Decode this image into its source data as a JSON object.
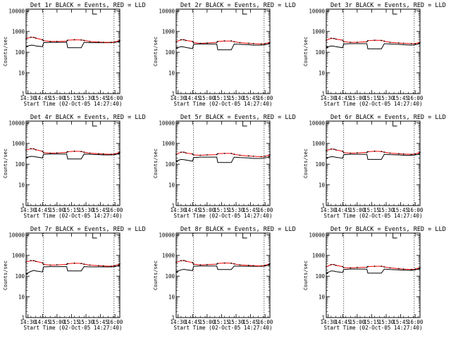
{
  "figure": {
    "xlabel": "Start Time (02-Oct-05 14:27:40)",
    "ylabel": "Counts/sec"
  },
  "axes": {
    "x_tick_labels": [
      "14:30",
      "14:45",
      "15:00",
      "15:15",
      "15:30",
      "15:45",
      "16:00"
    ],
    "y_tick_labels": [
      "1",
      "10",
      "100",
      "1000",
      "10000"
    ],
    "y_scale": "log",
    "ylim": [
      1,
      12000
    ],
    "xlim_minutes": [
      0,
      97
    ]
  },
  "colors": {
    "events": "#000000",
    "lld": "#ff0000",
    "frame": "#000000"
  },
  "chart_data": [
    {
      "type": "line",
      "title": "Det 1r BLACK = Events, RED = LLD",
      "x_minutes": [
        0,
        5,
        8,
        10,
        17,
        18,
        25,
        32,
        42,
        43,
        50,
        57,
        60,
        66,
        75,
        80,
        88,
        92,
        97
      ],
      "series": [
        {
          "name": "Events",
          "values": [
            190,
            220,
            215,
            200,
            185,
            290,
            300,
            300,
            300,
            165,
            165,
            165,
            300,
            290,
            290,
            290,
            290,
            300,
            330
          ]
        },
        {
          "name": "LLD",
          "values": [
            450,
            530,
            520,
            480,
            400,
            360,
            330,
            330,
            340,
            380,
            400,
            390,
            370,
            330,
            310,
            300,
            300,
            310,
            370
          ]
        }
      ],
      "vlines_minutes": [
        18,
        91
      ],
      "markers": [
        "dot-left",
        "dot-right",
        "top-tick"
      ]
    },
    {
      "type": "line",
      "title": "Det 2r BLACK = Events, RED = LLD",
      "x_minutes": [
        0,
        5,
        8,
        10,
        17,
        18,
        25,
        32,
        42,
        43,
        50,
        57,
        60,
        66,
        75,
        80,
        88,
        92,
        97
      ],
      "series": [
        {
          "name": "Events",
          "values": [
            160,
            185,
            180,
            170,
            150,
            240,
            250,
            250,
            250,
            130,
            130,
            130,
            250,
            240,
            230,
            220,
            220,
            230,
            260
          ]
        },
        {
          "name": "LLD",
          "values": [
            320,
            400,
            400,
            370,
            330,
            290,
            270,
            280,
            300,
            330,
            350,
            350,
            320,
            290,
            270,
            260,
            250,
            260,
            300
          ]
        }
      ],
      "vlines_minutes": [
        18,
        91
      ],
      "markers": [
        "dot-left",
        "dot-right",
        "top-tick"
      ]
    },
    {
      "type": "line",
      "title": "Det 3r BLACK = Events, RED = LLD",
      "x_minutes": [
        0,
        5,
        8,
        10,
        17,
        18,
        25,
        32,
        42,
        43,
        50,
        57,
        60,
        66,
        75,
        80,
        88,
        92,
        97
      ],
      "series": [
        {
          "name": "Events",
          "values": [
            170,
            200,
            195,
            185,
            165,
            250,
            260,
            260,
            260,
            145,
            145,
            145,
            260,
            250,
            240,
            230,
            220,
            230,
            260
          ]
        },
        {
          "name": "LLD",
          "values": [
            380,
            470,
            460,
            430,
            380,
            320,
            300,
            300,
            320,
            360,
            380,
            370,
            340,
            300,
            280,
            270,
            260,
            260,
            300
          ]
        }
      ],
      "vlines_minutes": [
        18,
        91
      ],
      "markers": [
        "dot-left",
        "dot-right",
        "top-tick"
      ]
    },
    {
      "type": "line",
      "title": "Det 4r BLACK = Events, RED = LLD",
      "x_minutes": [
        0,
        5,
        8,
        10,
        17,
        18,
        25,
        32,
        42,
        43,
        50,
        57,
        60,
        66,
        75,
        80,
        88,
        92,
        97
      ],
      "series": [
        {
          "name": "Events",
          "values": [
            210,
            240,
            235,
            225,
            200,
            300,
            310,
            310,
            310,
            180,
            180,
            180,
            310,
            300,
            290,
            280,
            280,
            290,
            330
          ]
        },
        {
          "name": "LLD",
          "values": [
            480,
            560,
            550,
            500,
            420,
            360,
            340,
            350,
            370,
            400,
            420,
            410,
            380,
            340,
            320,
            310,
            300,
            310,
            380
          ]
        }
      ],
      "vlines_minutes": [
        18,
        91
      ],
      "markers": [
        "dot-left",
        "dot-right",
        "top-tick"
      ]
    },
    {
      "type": "line",
      "title": "Det 5r BLACK = Events, RED = LLD",
      "x_minutes": [
        0,
        5,
        8,
        10,
        17,
        18,
        25,
        32,
        42,
        43,
        50,
        57,
        60,
        66,
        75,
        80,
        88,
        92,
        97
      ],
      "series": [
        {
          "name": "Events",
          "values": [
            140,
            170,
            165,
            160,
            140,
            210,
            220,
            220,
            220,
            120,
            120,
            120,
            220,
            210,
            200,
            190,
            190,
            200,
            230
          ]
        },
        {
          "name": "LLD",
          "values": [
            300,
            380,
            380,
            350,
            310,
            280,
            270,
            280,
            290,
            320,
            330,
            330,
            300,
            270,
            250,
            240,
            230,
            240,
            280
          ]
        }
      ],
      "vlines_minutes": [
        18,
        91
      ],
      "markers": [
        "dot-left",
        "dot-right",
        "top-tick"
      ]
    },
    {
      "type": "line",
      "title": "Det 6r BLACK = Events, RED = LLD",
      "x_minutes": [
        0,
        5,
        8,
        10,
        17,
        18,
        25,
        32,
        42,
        43,
        50,
        57,
        60,
        66,
        75,
        80,
        88,
        92,
        97
      ],
      "series": [
        {
          "name": "Events",
          "values": [
            200,
            230,
            225,
            215,
            195,
            290,
            300,
            300,
            300,
            170,
            170,
            170,
            300,
            290,
            280,
            270,
            270,
            280,
            310
          ]
        },
        {
          "name": "LLD",
          "values": [
            450,
            540,
            530,
            490,
            420,
            360,
            340,
            350,
            370,
            400,
            420,
            410,
            380,
            340,
            320,
            310,
            300,
            310,
            370
          ]
        }
      ],
      "vlines_minutes": [
        18,
        91
      ],
      "markers": [
        "dot-left",
        "dot-right",
        "top-tick"
      ]
    },
    {
      "type": "line",
      "title": "Det 7r BLACK = Events, RED = LLD",
      "x_minutes": [
        0,
        5,
        8,
        10,
        17,
        18,
        25,
        32,
        42,
        43,
        50,
        57,
        60,
        66,
        75,
        80,
        88,
        92,
        97
      ],
      "series": [
        {
          "name": "Events",
          "values": [
            130,
            170,
            190,
            180,
            160,
            280,
            290,
            290,
            290,
            180,
            180,
            180,
            290,
            280,
            280,
            280,
            280,
            290,
            330
          ]
        },
        {
          "name": "LLD",
          "values": [
            480,
            560,
            560,
            520,
            440,
            370,
            340,
            350,
            370,
            400,
            420,
            410,
            380,
            340,
            320,
            310,
            300,
            320,
            390
          ]
        }
      ],
      "vlines_minutes": [
        18,
        91
      ],
      "markers": [
        "dot-left",
        "dot-right",
        "top-tick"
      ]
    },
    {
      "type": "line",
      "title": "Det 8r BLACK = Events, RED = LLD",
      "x_minutes": [
        0,
        5,
        8,
        10,
        17,
        18,
        25,
        32,
        42,
        43,
        50,
        57,
        60,
        66,
        75,
        80,
        88,
        92,
        97
      ],
      "series": [
        {
          "name": "Events",
          "values": [
            160,
            200,
            215,
            205,
            185,
            300,
            310,
            310,
            310,
            210,
            210,
            210,
            310,
            300,
            300,
            300,
            300,
            310,
            350
          ]
        },
        {
          "name": "LLD",
          "values": [
            460,
            560,
            570,
            530,
            450,
            380,
            350,
            360,
            380,
            410,
            430,
            420,
            390,
            350,
            330,
            320,
            310,
            330,
            400
          ]
        }
      ],
      "vlines_minutes": [
        18,
        91
      ],
      "markers": [
        "dot-left",
        "dot-right",
        "top-tick"
      ]
    },
    {
      "type": "line",
      "title": "Det 9r BLACK = Events, RED = LLD",
      "x_minutes": [
        0,
        5,
        8,
        10,
        17,
        18,
        25,
        32,
        42,
        43,
        50,
        57,
        60,
        66,
        75,
        80,
        88,
        92,
        97
      ],
      "series": [
        {
          "name": "Events",
          "values": [
            140,
            180,
            175,
            165,
            150,
            210,
            220,
            220,
            220,
            140,
            140,
            140,
            220,
            210,
            200,
            195,
            190,
            200,
            230
          ]
        },
        {
          "name": "LLD",
          "values": [
            280,
            360,
            360,
            330,
            290,
            260,
            250,
            260,
            270,
            290,
            300,
            300,
            280,
            250,
            230,
            220,
            210,
            220,
            260
          ]
        }
      ],
      "vlines_minutes": [
        18,
        91
      ],
      "markers": [
        "dot-left",
        "dot-right",
        "top-tick"
      ]
    }
  ]
}
